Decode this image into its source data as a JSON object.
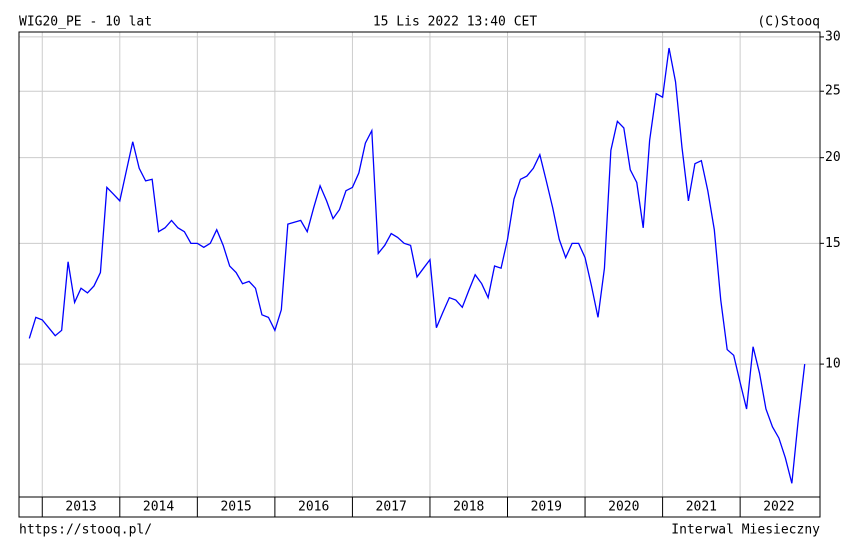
{
  "chart_data": {
    "type": "line",
    "title": "WIG20_PE - 10 lat",
    "subtitle": "15 Lis 2022 13:40 CET",
    "copyright": "(C)Stooq",
    "source_url": "https://stooq.pl/",
    "interval": "Interwal Miesieczny",
    "log_scale": true,
    "grid": true,
    "xlim": [
      2012.7,
      2023.03
    ],
    "ylim": [
      6.4,
      30.5
    ],
    "xticks": [
      2013,
      2014,
      2015,
      2016,
      2017,
      2018,
      2019,
      2020,
      2021,
      2022
    ],
    "yticks": [
      10,
      15,
      20,
      25,
      30
    ],
    "x": [
      2012.833,
      2012.917,
      2013,
      2013.083,
      2013.167,
      2013.25,
      2013.333,
      2013.417,
      2013.5,
      2013.583,
      2013.667,
      2013.75,
      2013.833,
      2013.917,
      2014,
      2014.083,
      2014.167,
      2014.25,
      2014.333,
      2014.417,
      2014.5,
      2014.583,
      2014.667,
      2014.75,
      2014.833,
      2014.917,
      2015,
      2015.083,
      2015.167,
      2015.25,
      2015.333,
      2015.417,
      2015.5,
      2015.583,
      2015.667,
      2015.75,
      2015.833,
      2015.917,
      2016,
      2016.083,
      2016.167,
      2016.25,
      2016.333,
      2016.417,
      2016.5,
      2016.583,
      2016.667,
      2016.75,
      2016.833,
      2016.917,
      2017,
      2017.083,
      2017.167,
      2017.25,
      2017.333,
      2017.417,
      2017.5,
      2017.583,
      2017.667,
      2017.75,
      2017.833,
      2017.917,
      2018,
      2018.083,
      2018.167,
      2018.25,
      2018.333,
      2018.417,
      2018.5,
      2018.583,
      2018.667,
      2018.75,
      2018.833,
      2018.917,
      2019,
      2019.083,
      2019.167,
      2019.25,
      2019.333,
      2019.417,
      2019.5,
      2019.583,
      2019.667,
      2019.75,
      2019.833,
      2019.917,
      2020,
      2020.083,
      2020.167,
      2020.25,
      2020.333,
      2020.417,
      2020.5,
      2020.583,
      2020.667,
      2020.75,
      2020.833,
      2020.917,
      2021,
      2021.083,
      2021.167,
      2021.25,
      2021.333,
      2021.417,
      2021.5,
      2021.583,
      2021.667,
      2021.75,
      2021.833,
      2021.917,
      2022,
      2022.083,
      2022.167,
      2022.25,
      2022.333,
      2022.417,
      2022.5,
      2022.583,
      2022.667,
      2022.75,
      2022.833
    ],
    "series": [
      {
        "name": "WIG20_PE",
        "color": "#0000ff",
        "values": [
          10.9,
          11.7,
          11.6,
          11.3,
          11.0,
          11.2,
          14.1,
          12.3,
          12.9,
          12.7,
          13.0,
          13.6,
          18.1,
          17.7,
          17.3,
          19.1,
          21.1,
          19.3,
          18.5,
          18.6,
          15.6,
          15.8,
          16.2,
          15.8,
          15.6,
          15.0,
          15.0,
          14.8,
          15.0,
          15.7,
          14.9,
          13.9,
          13.6,
          13.1,
          13.2,
          12.9,
          11.8,
          11.7,
          11.2,
          12.0,
          16.0,
          16.1,
          16.2,
          15.6,
          16.9,
          18.2,
          17.3,
          16.3,
          16.8,
          17.9,
          18.1,
          19.0,
          21.0,
          21.9,
          14.5,
          14.9,
          15.5,
          15.3,
          15.0,
          14.9,
          13.4,
          13.8,
          14.2,
          11.3,
          11.9,
          12.5,
          12.4,
          12.1,
          12.8,
          13.5,
          13.1,
          12.5,
          13.9,
          13.8,
          15.2,
          17.4,
          18.6,
          18.8,
          19.3,
          20.2,
          18.5,
          16.9,
          15.2,
          14.3,
          15.0,
          15.0,
          14.3,
          13.0,
          11.7,
          13.8,
          20.5,
          22.6,
          22.1,
          19.2,
          18.4,
          15.8,
          21.2,
          24.8,
          24.5,
          28.9,
          25.8,
          20.7,
          17.3,
          19.6,
          19.8,
          17.9,
          15.7,
          12.4,
          10.5,
          10.3,
          9.4,
          8.6,
          10.6,
          9.7,
          8.6,
          8.1,
          7.8,
          7.3,
          6.7,
          8.3,
          10.0
        ]
      }
    ]
  }
}
